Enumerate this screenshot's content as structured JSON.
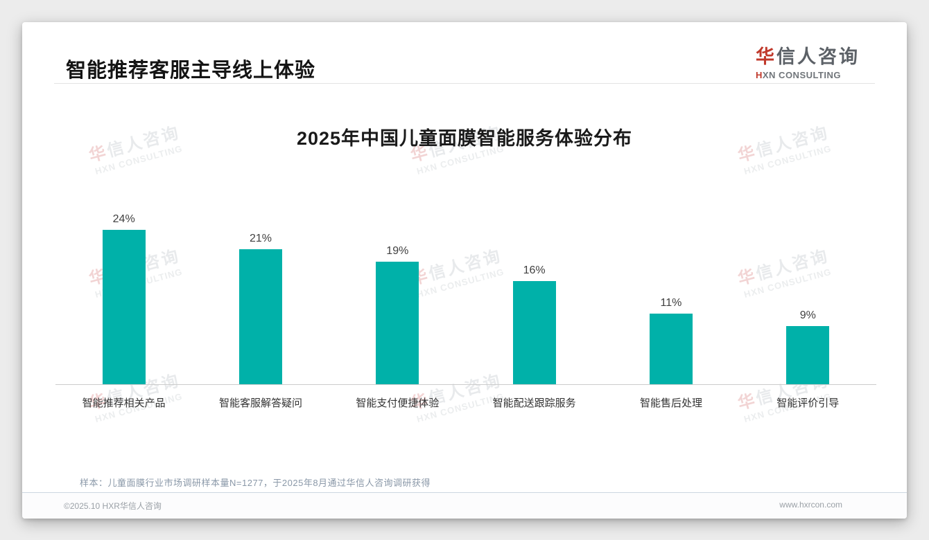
{
  "page": {
    "header": {
      "title": "智能推荐客服主导线上体验"
    },
    "logo": {
      "cn_accent": "华",
      "cn_rest": "信人咨询",
      "en_accent": "H",
      "en_rest": "XN CONSULTING"
    },
    "watermark": {
      "cn_accent": "华",
      "cn_rest": "信人咨询",
      "en": "HXN CONSULTING"
    },
    "footnote": "样本：儿童面膜行业市场调研样本量N=1277，于2025年8月通过华信人咨询调研获得",
    "footer": {
      "copyright": "©2025.10 HXR华信人咨询",
      "website": "www.hxrcon.com"
    },
    "colors": {
      "accent_red": "#C0392B",
      "bar_teal": "#00B1A9",
      "note_gray_blue": "#8A98A8"
    }
  },
  "chart_data": {
    "type": "bar",
    "title": "2025年中国儿童面膜智能服务体验分布",
    "categories": [
      "智能推荐相关产品",
      "智能客服解答疑问",
      "智能支付便捷体验",
      "智能配送跟踪服务",
      "智能售后处理",
      "智能评价引导"
    ],
    "values": [
      24,
      21,
      19,
      16,
      11,
      9
    ],
    "value_labels": [
      "24%",
      "21%",
      "19%",
      "16%",
      "11%",
      "9%"
    ],
    "unit": "%",
    "xlabel": "",
    "ylabel": "",
    "ylim": [
      0,
      26
    ],
    "bar_color": "#00B1A9",
    "grid": false,
    "legend": false
  }
}
